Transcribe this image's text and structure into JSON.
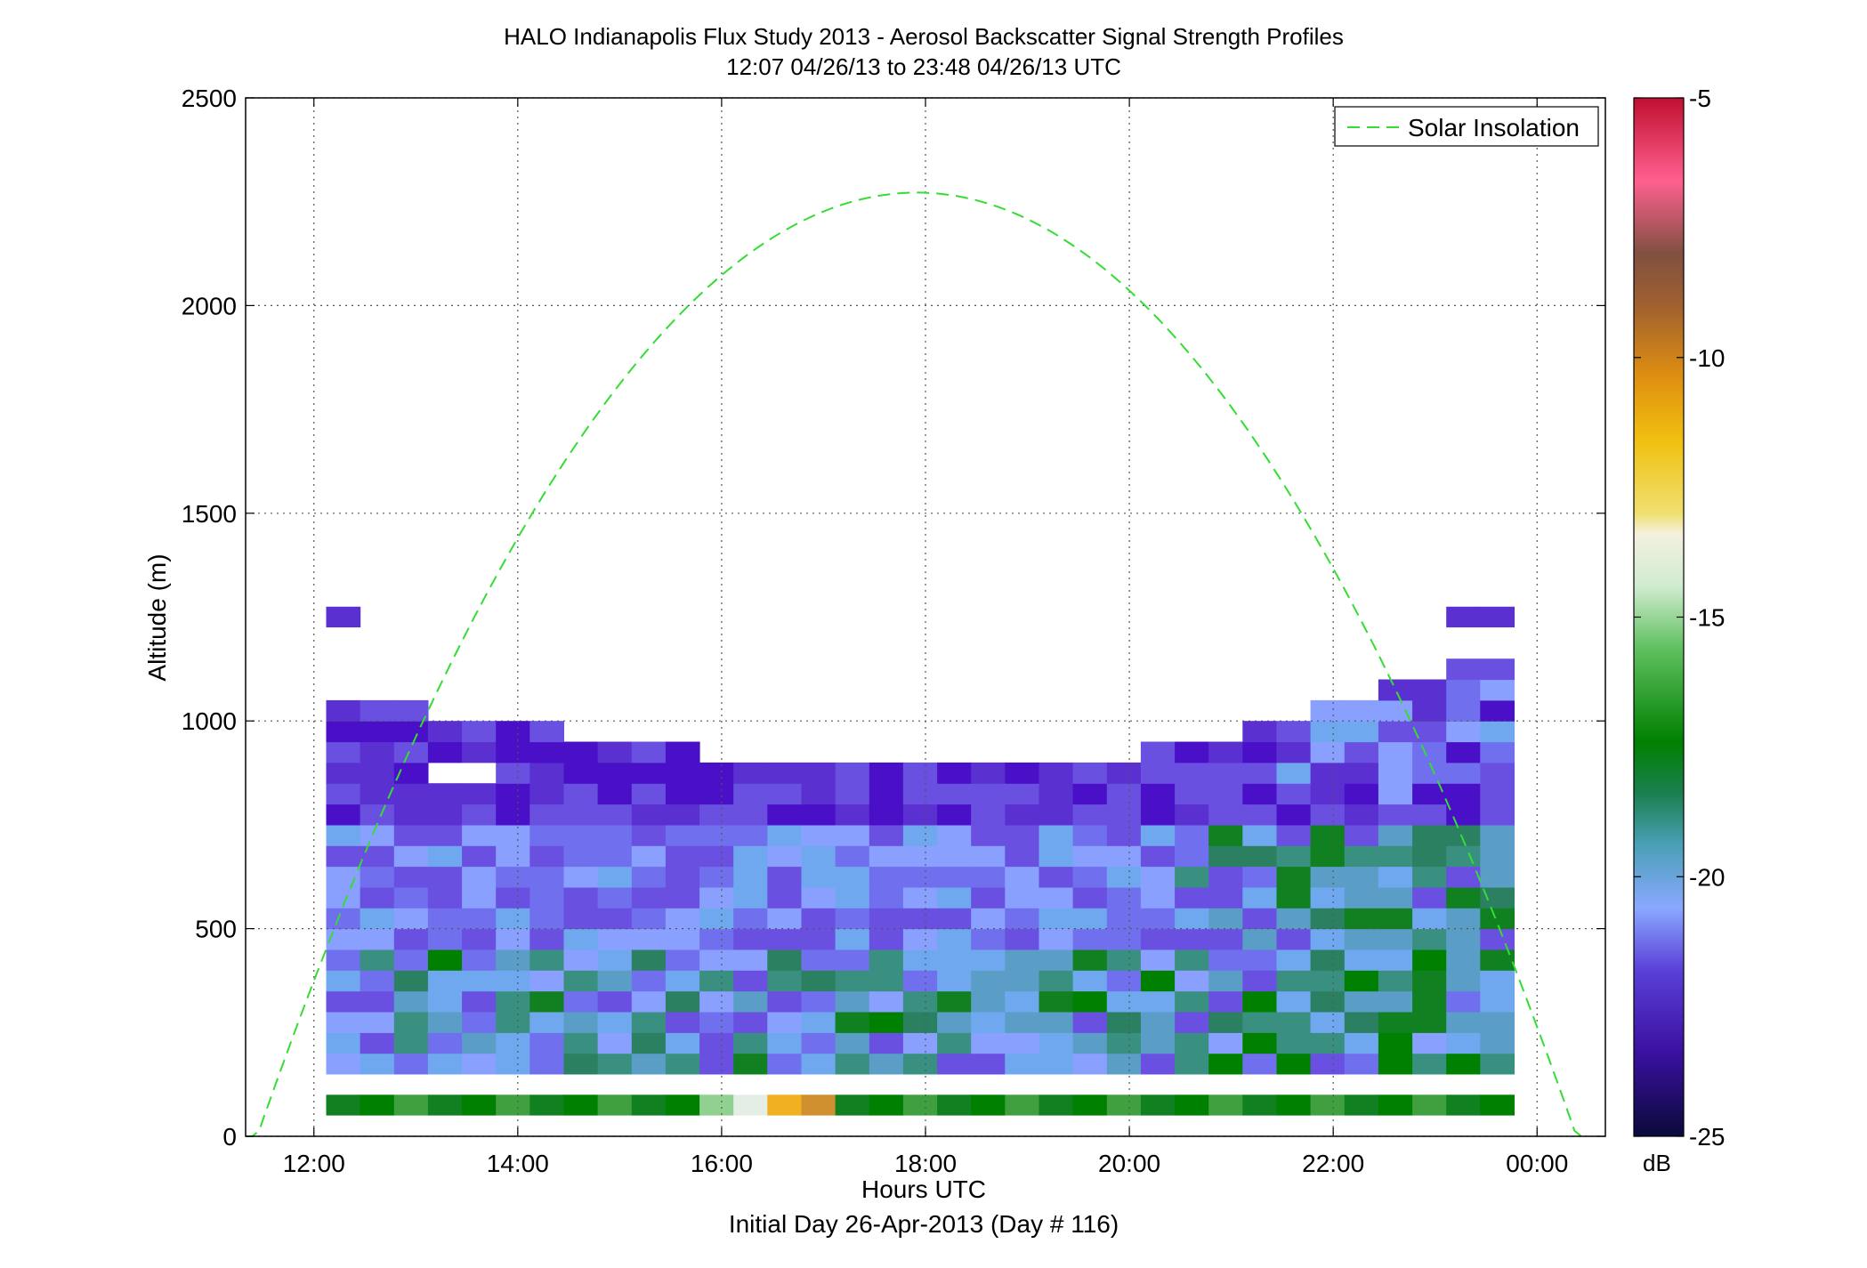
{
  "chart_data": {
    "type": "heatmap",
    "title": "HALO Indianapolis Flux Study 2013 - Aerosol Backscatter Signal Strength Profiles",
    "subtitle": "12:07 04/26/13 to 23:48 04/26/13  UTC",
    "xlabel": "Hours UTC",
    "xlabel2": "Initial Day 26-Apr-2013 (Day # 116)",
    "ylabel": "Altitude (m)",
    "xlim": [
      11.33,
      24.67
    ],
    "ylim": [
      0,
      2500
    ],
    "x_ticks": [
      {
        "value": 12,
        "label": "12:00"
      },
      {
        "value": 14,
        "label": "14:00"
      },
      {
        "value": 16,
        "label": "16:00"
      },
      {
        "value": 18,
        "label": "18:00"
      },
      {
        "value": 20,
        "label": "20:00"
      },
      {
        "value": 22,
        "label": "22:00"
      },
      {
        "value": 24,
        "label": "00:00"
      }
    ],
    "y_ticks": [
      {
        "value": 0,
        "label": "0"
      },
      {
        "value": 500,
        "label": "500"
      },
      {
        "value": 1000,
        "label": "1000"
      },
      {
        "value": 1500,
        "label": "1500"
      },
      {
        "value": 2000,
        "label": "2000"
      },
      {
        "value": 2500,
        "label": "2500"
      }
    ],
    "grid": true,
    "legend": {
      "position": "top-right",
      "label": "Solar Insolation",
      "color": "#33dd33",
      "style": "dashed"
    },
    "colorbar": {
      "min": -25,
      "max": -5,
      "unit": "dB",
      "ticks": [
        {
          "value": -5,
          "label": "-5"
        },
        {
          "value": -10,
          "label": "-10"
        },
        {
          "value": -15,
          "label": "-15"
        },
        {
          "value": -20,
          "label": "-20"
        },
        {
          "value": -25,
          "label": "-25"
        }
      ]
    },
    "time_start_hour": 12.12,
    "time_step_hours": 0.333,
    "alt_bins_m": [
      75,
      125,
      175,
      225,
      275,
      325,
      375,
      425,
      475,
      525,
      575,
      625,
      675,
      725,
      775,
      825,
      875,
      925,
      975,
      1025,
      1075,
      1125,
      1175,
      1225,
      1250
    ],
    "rows": [
      "AAABBAABDDDBBAABAAADDDAAAABAAAAAAAAAA",
      "33322222222222223322333322223333222323",
      "...........................................",
      "",
      "",
      "",
      "",
      "",
      "",
      "",
      "",
      "",
      "",
      "",
      "",
      "",
      "",
      "",
      "",
      "",
      "",
      "",
      "",
      "",
      ""
    ],
    "series": [
      {
        "name": "Solar Insolation",
        "peak_hour": 17.67,
        "peak_alt": 2240,
        "zero_hours": [
          11.33,
          24.5
        ]
      }
    ]
  }
}
